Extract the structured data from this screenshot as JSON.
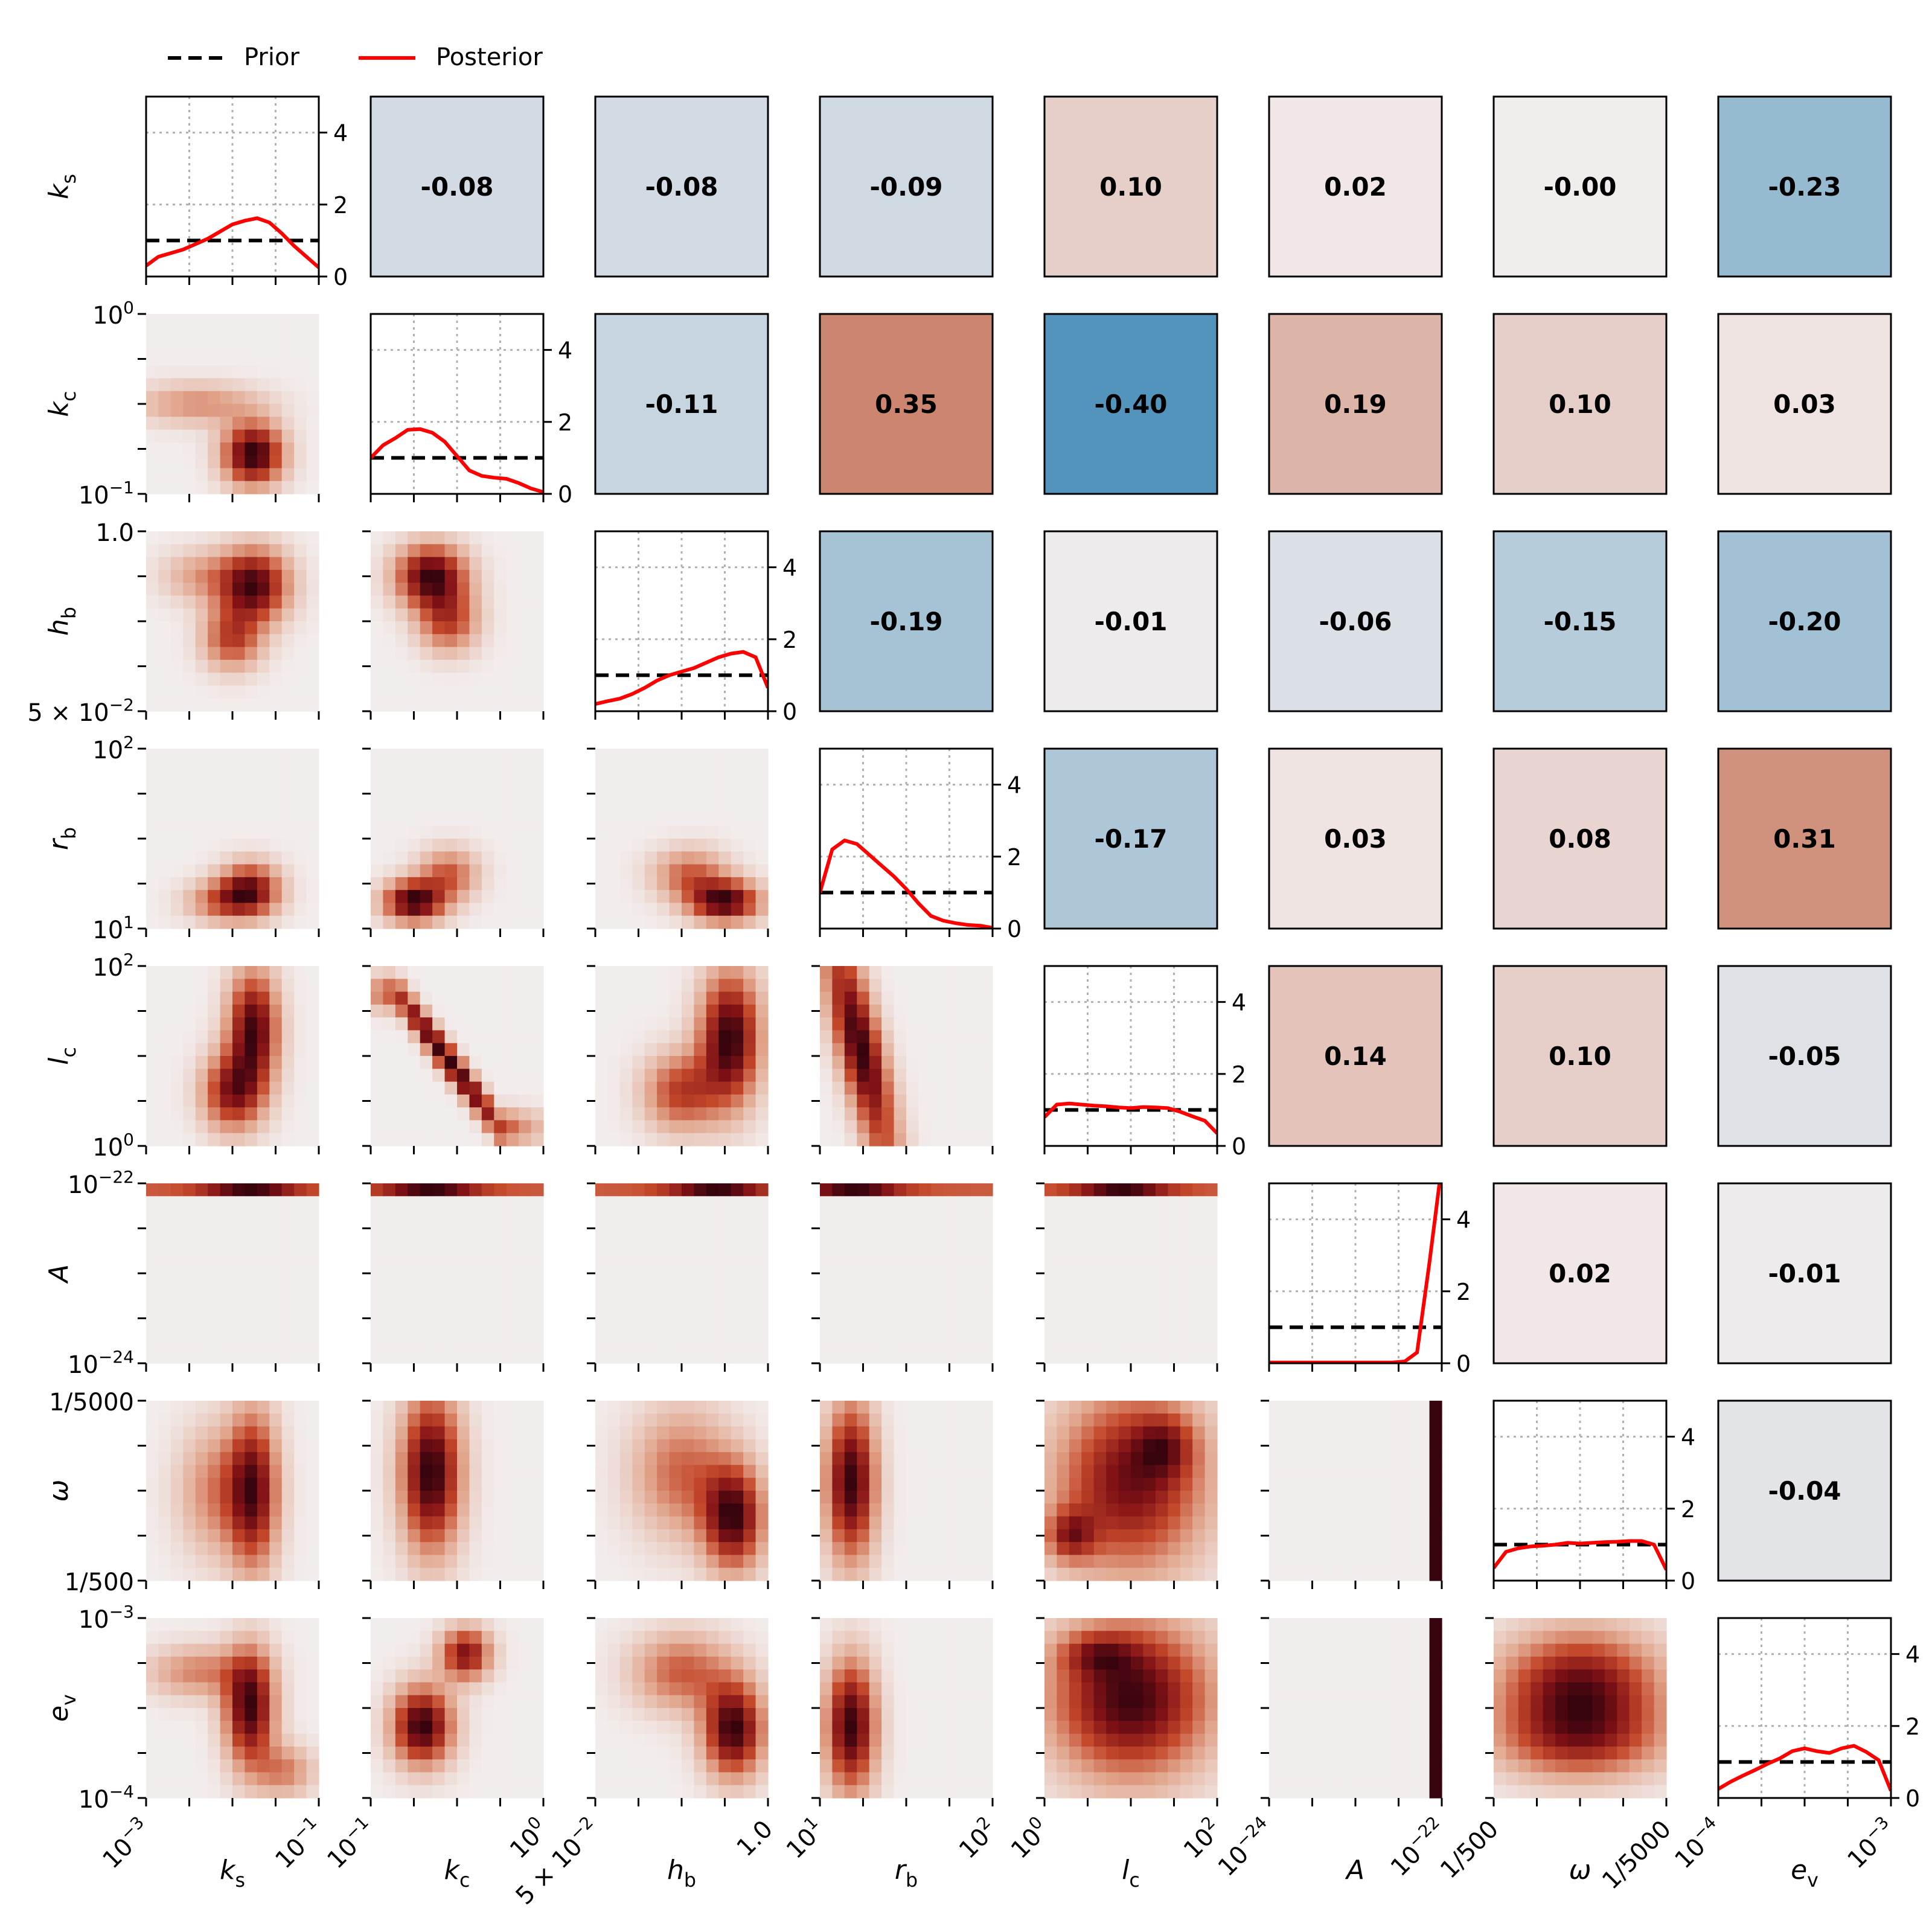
{
  "legend": {
    "placement": "top-left",
    "prior_label": "Prior",
    "posterior_label": "Posterior"
  },
  "colors": {
    "prior": "#000000",
    "posterior": "#ff0000",
    "positive": "#c0573d",
    "negative": "#4a90b8",
    "neutral": "#f2eded",
    "density_high": "#3d0510"
  },
  "chart_data": {
    "type": "heatmap",
    "kind": "corner-plot",
    "grid": true,
    "parameters": [
      {
        "id": "ks",
        "sym": "k",
        "sub": "s",
        "ticks": [
          {
            "b": "10",
            "e": "−3"
          },
          {
            "b": "10",
            "e": "−1"
          }
        ]
      },
      {
        "id": "kc",
        "sym": "k",
        "sub": "c",
        "ticks": [
          {
            "b": "10",
            "e": "−1"
          },
          {
            "b": "10",
            "e": "0"
          }
        ]
      },
      {
        "id": "hb",
        "sym": "h",
        "sub": "b",
        "ticks": [
          {
            "b": "5 × 10",
            "e": "−2"
          },
          {
            "b": "1.0",
            "e": ""
          }
        ]
      },
      {
        "id": "rb",
        "sym": "r",
        "sub": "b",
        "ticks": [
          {
            "b": "10",
            "e": "1"
          },
          {
            "b": "10",
            "e": "2"
          }
        ]
      },
      {
        "id": "lc",
        "sym": "l",
        "sub": "c",
        "ticks": [
          {
            "b": "10",
            "e": "0"
          },
          {
            "b": "10",
            "e": "2"
          }
        ]
      },
      {
        "id": "A",
        "sym": "A",
        "sub": "",
        "ticks": [
          {
            "b": "10",
            "e": "−24"
          },
          {
            "b": "10",
            "e": "−22"
          }
        ]
      },
      {
        "id": "omega",
        "sym": "ω",
        "sub": "",
        "ticks": [
          {
            "b": "1/500",
            "e": ""
          },
          {
            "b": "1/5000",
            "e": ""
          }
        ]
      },
      {
        "id": "ev",
        "sym": "e",
        "sub": "v",
        "ticks": [
          {
            "b": "10",
            "e": "−4"
          },
          {
            "b": "10",
            "e": "−3"
          }
        ]
      }
    ],
    "diag_yticks": [
      "0",
      "2",
      "4"
    ],
    "diag_ylim": [
      0,
      5
    ],
    "prior_density": 1.0,
    "posterior": [
      [
        0.3,
        0.55,
        0.65,
        0.75,
        0.9,
        1.05,
        1.25,
        1.45,
        1.55,
        1.62,
        1.5,
        1.2,
        0.85,
        0.55,
        0.25
      ],
      [
        1.0,
        1.35,
        1.55,
        1.78,
        1.8,
        1.7,
        1.45,
        1.05,
        0.65,
        0.5,
        0.45,
        0.42,
        0.3,
        0.15,
        0.05
      ],
      [
        0.2,
        0.28,
        0.35,
        0.48,
        0.65,
        0.85,
        1.0,
        1.1,
        1.2,
        1.35,
        1.5,
        1.6,
        1.65,
        1.5,
        0.65
      ],
      [
        1.0,
        2.2,
        2.45,
        2.35,
        2.05,
        1.75,
        1.45,
        1.1,
        0.7,
        0.35,
        0.22,
        0.15,
        0.1,
        0.08,
        0.02
      ],
      [
        0.8,
        1.15,
        1.18,
        1.15,
        1.12,
        1.1,
        1.07,
        1.05,
        1.08,
        1.07,
        1.05,
        0.95,
        0.82,
        0.7,
        0.35
      ],
      [
        0.02,
        0.02,
        0.02,
        0.02,
        0.02,
        0.02,
        0.02,
        0.02,
        0.02,
        0.02,
        0.02,
        0.05,
        0.3,
        2.8,
        5.5
      ],
      [
        0.35,
        0.8,
        0.9,
        0.95,
        0.97,
        1.0,
        1.05,
        1.03,
        1.05,
        1.07,
        1.08,
        1.1,
        1.1,
        1.0,
        0.3
      ],
      [
        0.25,
        0.45,
        0.62,
        0.78,
        0.95,
        1.1,
        1.3,
        1.38,
        1.3,
        1.25,
        1.38,
        1.45,
        1.28,
        1.05,
        0.2
      ]
    ],
    "correlations": [
      [
        0,
        "-0.08",
        "-0.08",
        "-0.09",
        "0.10",
        "0.02",
        "-0.00",
        "-0.23"
      ],
      [
        0,
        0,
        "-0.11",
        "0.35",
        "-0.40",
        "0.19",
        "0.10",
        "0.03"
      ],
      [
        0,
        0,
        0,
        "-0.19",
        "-0.01",
        "-0.06",
        "-0.15",
        "-0.20"
      ],
      [
        0,
        0,
        0,
        0,
        "-0.17",
        "0.03",
        "0.08",
        "0.31"
      ],
      [
        0,
        0,
        0,
        0,
        0,
        "0.14",
        "0.10",
        "-0.05"
      ],
      [
        0,
        0,
        0,
        0,
        0,
        0,
        "0.02",
        "-0.01"
      ],
      [
        0,
        0,
        0,
        0,
        0,
        0,
        0,
        "-0.04"
      ]
    ]
  }
}
